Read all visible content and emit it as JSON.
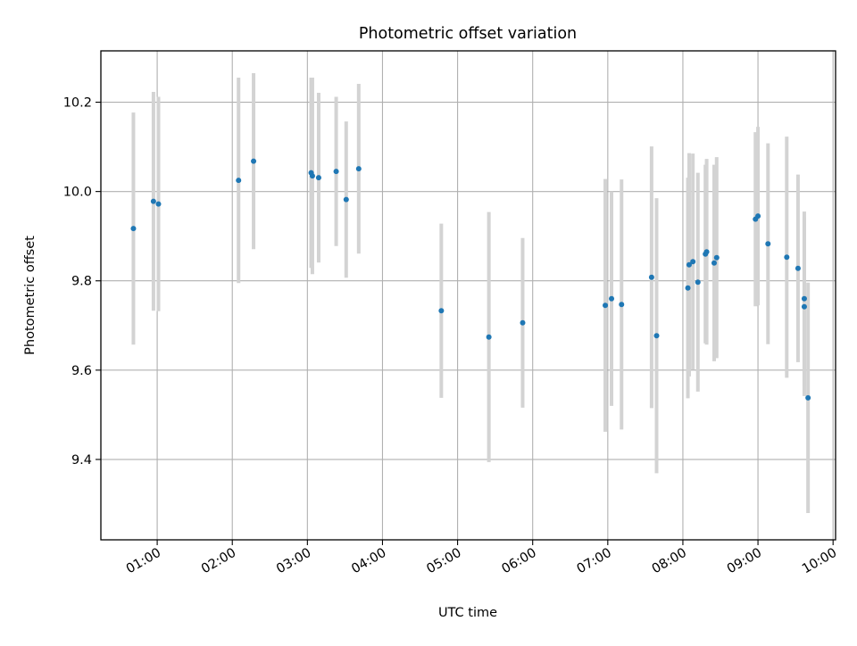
{
  "chart_data": {
    "type": "scatter",
    "title": "Photometric offset variation",
    "xlabel": "UTC time",
    "ylabel": "Photometric offset",
    "xlim": [
      "00:15",
      "10:02"
    ],
    "ylim": [
      9.22,
      10.315
    ],
    "xticks": [
      "01:00",
      "02:00",
      "03:00",
      "04:00",
      "05:00",
      "06:00",
      "07:00",
      "08:00",
      "09:00",
      "10:00"
    ],
    "yticks": [
      9.4,
      9.6,
      9.8,
      10.0,
      10.2
    ],
    "ytick_labels": [
      "9.4",
      "9.6",
      "9.8",
      "10.0",
      "10.2"
    ],
    "grid": true,
    "colors": {
      "points": "#1f77b4",
      "errorbars": "#d3d3d3",
      "grid": "#b0b0b0"
    },
    "points": [
      {
        "x": "00:41",
        "y": 9.917,
        "err": 0.26
      },
      {
        "x": "00:57",
        "y": 9.978,
        "err": 0.245
      },
      {
        "x": "01:01",
        "y": 9.972,
        "err": 0.24
      },
      {
        "x": "02:05",
        "y": 10.025,
        "err": 0.23
      },
      {
        "x": "02:17",
        "y": 10.068,
        "err": 0.197
      },
      {
        "x": "03:03",
        "y": 10.042,
        "err": 0.213
      },
      {
        "x": "03:04",
        "y": 10.035,
        "err": 0.22
      },
      {
        "x": "03:09",
        "y": 10.031,
        "err": 0.19
      },
      {
        "x": "03:23",
        "y": 10.045,
        "err": 0.167
      },
      {
        "x": "03:31",
        "y": 9.982,
        "err": 0.175
      },
      {
        "x": "03:41",
        "y": 10.051,
        "err": 0.19
      },
      {
        "x": "04:47",
        "y": 9.733,
        "err": 0.195
      },
      {
        "x": "05:25",
        "y": 9.674,
        "err": 0.28
      },
      {
        "x": "05:52",
        "y": 9.706,
        "err": 0.19
      },
      {
        "x": "06:58",
        "y": 9.745,
        "err": 0.283
      },
      {
        "x": "07:03",
        "y": 9.76,
        "err": 0.24
      },
      {
        "x": "07:11",
        "y": 9.747,
        "err": 0.28
      },
      {
        "x": "07:35",
        "y": 9.808,
        "err": 0.293
      },
      {
        "x": "07:39",
        "y": 9.677,
        "err": 0.308
      },
      {
        "x": "08:04",
        "y": 9.784,
        "err": 0.247
      },
      {
        "x": "08:05",
        "y": 9.836,
        "err": 0.25
      },
      {
        "x": "08:08",
        "y": 9.843,
        "err": 0.242
      },
      {
        "x": "08:12",
        "y": 9.797,
        "err": 0.245
      },
      {
        "x": "08:18",
        "y": 9.86,
        "err": 0.2
      },
      {
        "x": "08:19",
        "y": 9.865,
        "err": 0.208
      },
      {
        "x": "08:25",
        "y": 9.84,
        "err": 0.22
      },
      {
        "x": "08:27",
        "y": 9.852,
        "err": 0.225
      },
      {
        "x": "08:58",
        "y": 9.938,
        "err": 0.195
      },
      {
        "x": "09:00",
        "y": 9.945,
        "err": 0.2
      },
      {
        "x": "09:08",
        "y": 9.883,
        "err": 0.225
      },
      {
        "x": "09:23",
        "y": 9.853,
        "err": 0.27
      },
      {
        "x": "09:32",
        "y": 9.828,
        "err": 0.21
      },
      {
        "x": "09:37",
        "y": 9.76,
        "err": 0.195
      },
      {
        "x": "09:37",
        "y": 9.742,
        "err": 0.2
      },
      {
        "x": "09:40",
        "y": 9.538,
        "err": 0.258
      }
    ]
  }
}
